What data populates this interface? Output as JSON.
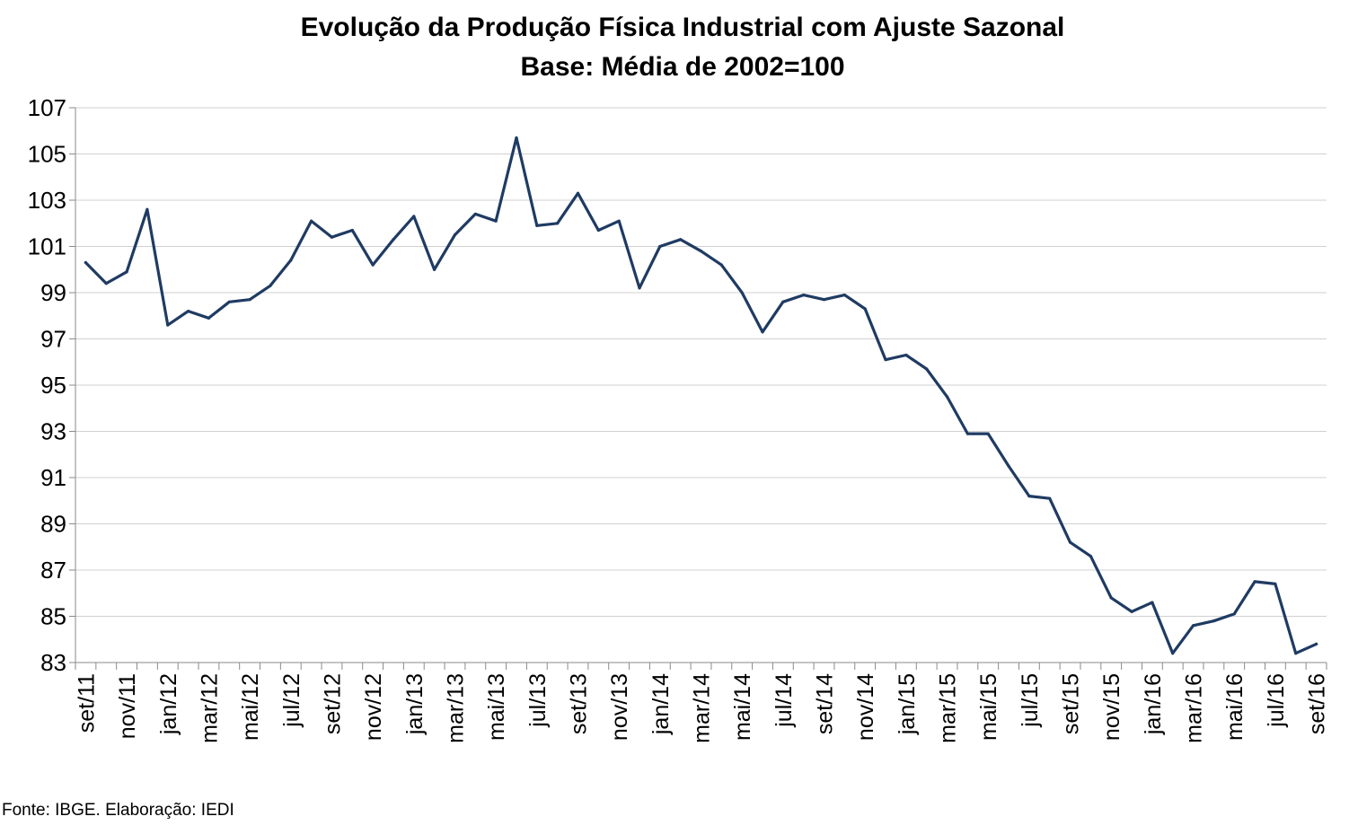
{
  "chart_data": {
    "type": "line",
    "title": "Evolução da Produção Física Industrial com Ajuste Sazonal",
    "subtitle": "Base: Média de 2002=100",
    "xlabel": "",
    "ylabel": "",
    "ylim": [
      83,
      107
    ],
    "yticks": [
      83,
      85,
      87,
      89,
      91,
      93,
      95,
      97,
      99,
      101,
      103,
      105,
      107
    ],
    "grid": true,
    "legend": "none",
    "line_color": "#1f3b63",
    "categories": [
      "set/11",
      "out/11",
      "nov/11",
      "dez/11",
      "jan/12",
      "fev/12",
      "mar/12",
      "abr/12",
      "mai/12",
      "jun/12",
      "jul/12",
      "ago/12",
      "set/12",
      "out/12",
      "nov/12",
      "dez/12",
      "jan/13",
      "fev/13",
      "mar/13",
      "abr/13",
      "mai/13",
      "jun/13",
      "jul/13",
      "ago/13",
      "set/13",
      "out/13",
      "nov/13",
      "dez/13",
      "jan/14",
      "fev/14",
      "mar/14",
      "abr/14",
      "mai/14",
      "jun/14",
      "jul/14",
      "ago/14",
      "set/14",
      "out/14",
      "nov/14",
      "dez/14",
      "jan/15",
      "fev/15",
      "mar/15",
      "abr/15",
      "mai/15",
      "jun/15",
      "jul/15",
      "ago/15",
      "set/15",
      "out/15",
      "nov/15",
      "dez/15",
      "jan/16",
      "fev/16",
      "mar/16",
      "abr/16",
      "mai/16",
      "jun/16",
      "jul/16",
      "ago/16",
      "set/16"
    ],
    "tick_labels": [
      "set/11",
      "nov/11",
      "jan/12",
      "mar/12",
      "mai/12",
      "jul/12",
      "set/12",
      "nov/12",
      "jan/13",
      "mar/13",
      "mai/13",
      "jul/13",
      "set/13",
      "nov/13",
      "jan/14",
      "mar/14",
      "mai/14",
      "jul/14",
      "set/14",
      "nov/14",
      "jan/15",
      "mar/15",
      "mai/15",
      "jul/15",
      "set/15",
      "nov/15",
      "jan/16",
      "mar/16",
      "mai/16",
      "jul/16",
      "set/16"
    ],
    "values": [
      100.3,
      99.4,
      99.9,
      102.6,
      97.6,
      98.2,
      97.9,
      98.6,
      98.7,
      99.3,
      100.4,
      102.1,
      101.4,
      101.7,
      100.2,
      101.3,
      102.3,
      100.0,
      101.5,
      102.4,
      102.1,
      105.7,
      101.9,
      102.0,
      103.3,
      101.7,
      102.1,
      99.2,
      101.0,
      101.3,
      100.8,
      100.2,
      99.0,
      97.3,
      98.6,
      98.9,
      98.7,
      98.9,
      98.3,
      96.1,
      96.3,
      95.7,
      94.5,
      92.9,
      92.9,
      91.5,
      90.2,
      90.1,
      88.2,
      87.6,
      85.8,
      85.2,
      85.6,
      83.4,
      84.6,
      84.8,
      85.1,
      86.5,
      86.4,
      83.4,
      83.8
    ]
  },
  "source_note": "Fonte: IBGE. Elaboração: IEDI"
}
